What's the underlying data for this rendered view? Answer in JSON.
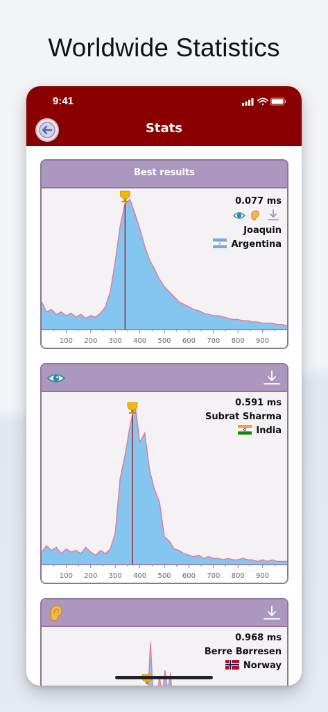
{
  "headline": "Worldwide Statistics",
  "status_bar": {
    "time": "9:41"
  },
  "nav": {
    "title": "Stats",
    "back_icon": "back-arrow-icon"
  },
  "colors": {
    "appbar": "#8a0000",
    "card_header": "#ac98be",
    "card_border": "#8f749a",
    "fill": "#85c6f1",
    "curve": "#e57a98",
    "marker": "#9b1c1c"
  },
  "cards": [
    {
      "header": {
        "title": "Best results",
        "icons": []
      },
      "result": {
        "time": "0.077 ms",
        "name": "Joaquin",
        "country": "Argentina",
        "flag": "argentina-flag-icon",
        "icons": [
          "eye-icon",
          "ear-icon",
          "download-icon"
        ]
      }
    },
    {
      "header": {
        "title": "",
        "icons": [
          "eye-icon",
          "download-icon"
        ]
      },
      "result": {
        "time": "0.591 ms",
        "name": "Subrat Sharma",
        "country": "India",
        "flag": "india-flag-icon",
        "icons": []
      }
    },
    {
      "header": {
        "title": "",
        "icons": [
          "ear-icon",
          "download-icon"
        ]
      },
      "result": {
        "time": "0.968 ms",
        "name": "Berre Børresen",
        "country": "Norway",
        "flag": "norway-flag-icon",
        "icons": []
      }
    }
  ],
  "chart_data": [
    {
      "type": "area",
      "xlim": [
        0,
        1000
      ],
      "x_ticks": [
        100,
        200,
        300,
        400,
        500,
        600,
        700,
        800,
        900
      ],
      "marker_x": 340,
      "x": [
        0,
        20,
        40,
        60,
        80,
        100,
        120,
        140,
        160,
        180,
        200,
        220,
        240,
        260,
        280,
        300,
        320,
        340,
        360,
        380,
        400,
        420,
        440,
        460,
        480,
        500,
        520,
        540,
        560,
        580,
        600,
        620,
        640,
        660,
        680,
        700,
        720,
        740,
        760,
        780,
        800,
        820,
        840,
        860,
        880,
        900,
        920,
        940,
        960,
        980,
        1000
      ],
      "values": [
        22,
        14,
        16,
        12,
        14,
        11,
        13,
        10,
        12,
        9,
        11,
        10,
        13,
        18,
        30,
        54,
        82,
        100,
        103,
        92,
        80,
        66,
        55,
        48,
        40,
        34,
        30,
        26,
        22,
        20,
        18,
        16,
        15,
        13,
        12,
        11,
        11,
        10,
        9,
        8,
        8,
        7,
        7,
        6,
        6,
        5,
        5,
        5,
        4,
        4,
        3
      ]
    },
    {
      "type": "area",
      "xlim": [
        0,
        1000
      ],
      "x_ticks": [
        100,
        200,
        300,
        400,
        500,
        600,
        700,
        800,
        900
      ],
      "marker_x": 370,
      "x": [
        0,
        20,
        40,
        60,
        80,
        100,
        120,
        140,
        160,
        180,
        200,
        220,
        240,
        260,
        280,
        300,
        320,
        340,
        360,
        380,
        400,
        420,
        440,
        460,
        480,
        500,
        520,
        540,
        560,
        580,
        600,
        620,
        640,
        660,
        680,
        700,
        720,
        740,
        760,
        780,
        800,
        820,
        840,
        860,
        880,
        900,
        920,
        940,
        960,
        980,
        1000
      ],
      "values": [
        8,
        12,
        9,
        11,
        7,
        10,
        8,
        9,
        7,
        11,
        8,
        6,
        9,
        7,
        10,
        20,
        55,
        70,
        88,
        103,
        78,
        84,
        60,
        48,
        40,
        18,
        15,
        10,
        9,
        7,
        6,
        5,
        6,
        4,
        5,
        4,
        4,
        3,
        4,
        3,
        3,
        4,
        3,
        3,
        2,
        3,
        2,
        3,
        2,
        2,
        2
      ]
    },
    {
      "type": "area",
      "xlim": [
        0,
        1000
      ],
      "x_ticks": [],
      "marker_x": 410,
      "x": [],
      "values": []
    }
  ]
}
